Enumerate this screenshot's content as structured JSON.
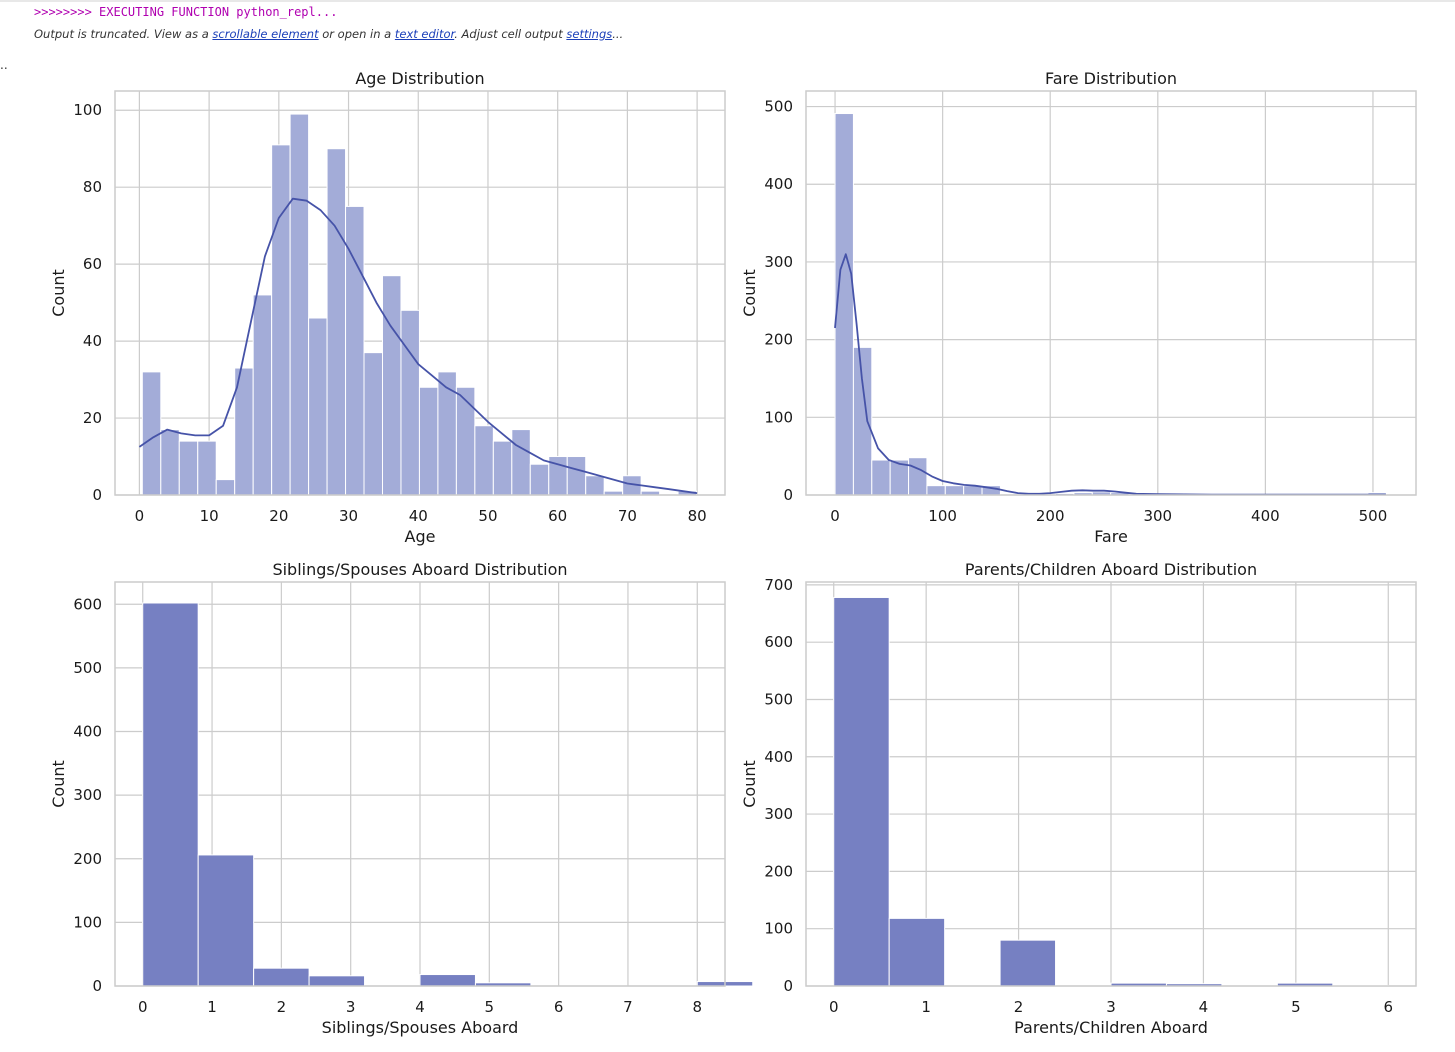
{
  "output_header": {
    "executing": ">>>>>>>> EXECUTING FUNCTION python_repl...",
    "truncated_prefix": "Output is truncated. View as a ",
    "link_scrollable": "scrollable element",
    "mid_text": " or open in a ",
    "link_editor": "text editor",
    "mid_text2": ". Adjust cell output ",
    "link_settings": "settings",
    "suffix": "...",
    "ellipsis": ".."
  },
  "colors": {
    "hist_light": "#a3acd8",
    "hist_dark": "#7680c2",
    "kde_line": "#4653a8",
    "grid": "#cccccc",
    "frame": "#cccccc"
  },
  "chart_data": [
    {
      "type": "bar",
      "title": "Age Distribution",
      "xlabel": "Age",
      "ylabel": "Count",
      "xlim": [
        -3.5,
        84
      ],
      "ylim": [
        0,
        105
      ],
      "xticks": [
        0,
        10,
        20,
        30,
        40,
        50,
        60,
        70,
        80
      ],
      "yticks": [
        0,
        20,
        40,
        60,
        80,
        100
      ],
      "bin_start": 0.42,
      "bin_width": 2.65,
      "values": [
        32,
        17,
        14,
        14,
        4,
        33,
        52,
        91,
        99,
        46,
        90,
        75,
        37,
        57,
        48,
        28,
        32,
        28,
        18,
        14,
        17,
        8,
        10,
        10,
        5,
        1,
        5,
        1,
        0,
        1
      ],
      "kde": {
        "x": [
          0,
          2,
          4,
          6,
          8,
          10,
          12,
          14,
          16,
          18,
          20,
          22,
          24,
          26,
          28,
          30,
          32,
          34,
          36,
          38,
          40,
          42,
          44,
          46,
          48,
          50,
          52,
          54,
          56,
          58,
          60,
          62,
          64,
          66,
          68,
          70,
          72,
          74,
          76,
          78,
          80
        ],
        "y": [
          12.5,
          15,
          17,
          16,
          15.5,
          15.5,
          18,
          28,
          45,
          62,
          72,
          77,
          76.5,
          74,
          70,
          64,
          57,
          50,
          44,
          39,
          34,
          31,
          28,
          26,
          22.5,
          19,
          16,
          13,
          11,
          9,
          8,
          7,
          6,
          5,
          4,
          3,
          2.5,
          2,
          1.5,
          1,
          0.5
        ]
      },
      "bar_style": "light"
    },
    {
      "type": "bar",
      "title": "Fare Distribution",
      "xlabel": "Fare",
      "ylabel": "Count",
      "xlim": [
        -27,
        540
      ],
      "ylim": [
        0,
        520
      ],
      "xticks": [
        0,
        100,
        200,
        300,
        400,
        500
      ],
      "yticks": [
        0,
        100,
        200,
        300,
        400,
        500
      ],
      "bin_start": 0,
      "bin_width": 17.08,
      "values": [
        491,
        190,
        45,
        45,
        48,
        12,
        12,
        12,
        12,
        0,
        0,
        0,
        2,
        3,
        4,
        3,
        0,
        0,
        0,
        0,
        0,
        0,
        0,
        0,
        0,
        0,
        0,
        0,
        0,
        3
      ],
      "kde": {
        "x": [
          0,
          5,
          10,
          15,
          20,
          25,
          30,
          40,
          50,
          60,
          70,
          80,
          90,
          100,
          110,
          120,
          130,
          140,
          150,
          160,
          170,
          180,
          190,
          200,
          210,
          220,
          230,
          240,
          250,
          260,
          270,
          280,
          300,
          350,
          400,
          450,
          500,
          512
        ],
        "y": [
          215,
          290,
          310,
          285,
          220,
          150,
          95,
          60,
          45,
          40,
          38,
          32,
          24,
          18,
          15,
          13,
          12,
          10,
          8,
          5,
          2.5,
          1.5,
          1.5,
          2.5,
          4,
          5.5,
          6,
          5.5,
          5.5,
          4.5,
          3,
          1.5,
          1,
          0.5,
          0.5,
          0.5,
          0.5,
          0.5
        ]
      },
      "bar_style": "light"
    },
    {
      "type": "bar",
      "title": "Siblings/Spouses Aboard Distribution",
      "xlabel": "Siblings/Spouses Aboard",
      "ylabel": "Count",
      "xlim": [
        -0.4,
        8.4
      ],
      "ylim": [
        0,
        635
      ],
      "xticks": [
        0,
        1,
        2,
        3,
        4,
        5,
        6,
        7,
        8
      ],
      "yticks": [
        0,
        100,
        200,
        300,
        400,
        500,
        600
      ],
      "bin_start": 0,
      "bin_width": 0.8,
      "values": [
        602,
        206,
        28,
        16,
        0,
        18,
        5,
        0,
        0,
        0,
        7
      ],
      "bar_style": "dark"
    },
    {
      "type": "bar",
      "title": "Parents/Children Aboard Distribution",
      "xlabel": "Parents/Children Aboard",
      "ylabel": "Count",
      "xlim": [
        -0.3,
        6.3
      ],
      "ylim": [
        0,
        705
      ],
      "xticks": [
        0,
        1,
        2,
        3,
        4,
        5,
        6
      ],
      "yticks": [
        0,
        100,
        200,
        300,
        400,
        500,
        600,
        700
      ],
      "bin_start": 0,
      "bin_width": 0.6,
      "values": [
        678,
        118,
        0,
        80,
        0,
        5,
        4,
        0,
        5,
        1
      ],
      "bar_style": "dark"
    }
  ]
}
